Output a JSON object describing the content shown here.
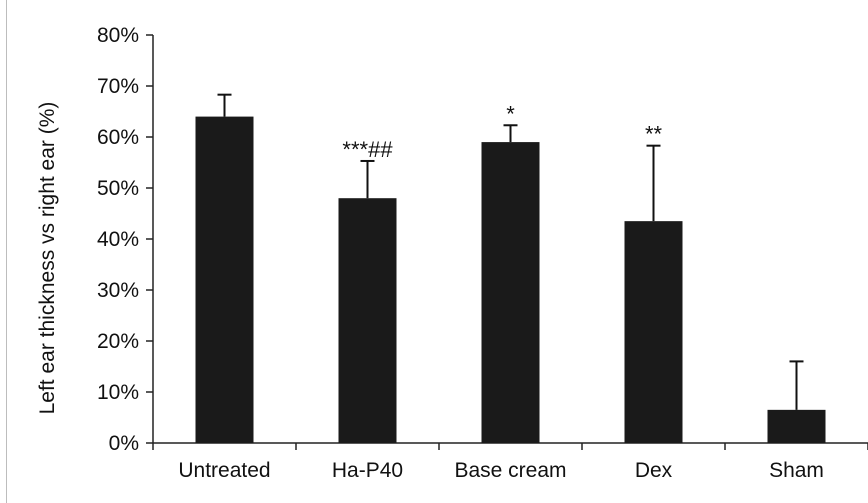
{
  "chart_data": {
    "type": "bar",
    "title": "",
    "xlabel": "",
    "ylabel": "Left ear thickness vs right ear (%)",
    "ylim": [
      0,
      80
    ],
    "yticks": [
      "0%",
      "10%",
      "20%",
      "30%",
      "40%",
      "50%",
      "60%",
      "70%",
      "80%"
    ],
    "categories": [
      "Untreated",
      "Ha-P40",
      "Base cream",
      "Dex",
      "Sham"
    ],
    "values": [
      64,
      48,
      59,
      43.5,
      6.5
    ],
    "error_upper": [
      68.3,
      55.3,
      62.3,
      58.3,
      16
    ],
    "annotations": [
      "",
      "***##",
      "*",
      "**",
      ""
    ],
    "bar_color": "#1a1a1a",
    "grid": false,
    "legend": "none"
  }
}
